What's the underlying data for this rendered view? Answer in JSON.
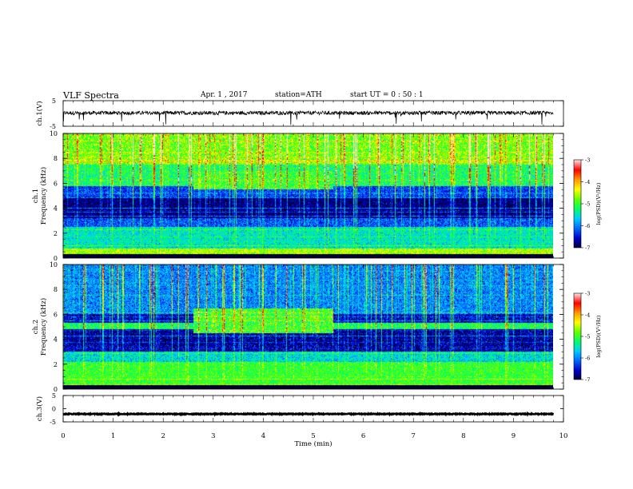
{
  "header": {
    "title": "VLF  Spectra",
    "date": "Apr. 1  , 2017",
    "station": "station=ATH",
    "start": "start  UT  =    0  : 50 : 1"
  },
  "chart_data": [
    {
      "type": "line",
      "name": "ch1-waveform",
      "ylabel": "ch.1(V)",
      "ylim": [
        -5,
        5
      ],
      "yticks": [
        "5",
        "-5"
      ],
      "xlim": [
        0,
        9.8
      ],
      "baseline_v": 0.2,
      "noise_amplitude_v": 1.5
    },
    {
      "type": "heatmap",
      "name": "ch1-spectrogram",
      "ylabel": "ch.1\nFrequency  (kHz)",
      "ylim": [
        0,
        10
      ],
      "yticks": [
        "0",
        "2",
        "4",
        "6",
        "8",
        "10"
      ],
      "xlim": [
        0,
        9.8
      ],
      "colorbar": {
        "label": "log(PSD)(V²/Hz)",
        "range": [
          -7,
          -3
        ],
        "ticks": [
          "-3",
          "-4",
          "-5",
          "-6",
          "-7"
        ]
      },
      "bands": [
        {
          "from": 0,
          "to": 0.3,
          "level": -7
        },
        {
          "from": 0.3,
          "to": 0.8,
          "level": -4.6
        },
        {
          "from": 0.8,
          "to": 2.5,
          "level": -5.5
        },
        {
          "from": 2.5,
          "to": 3.2,
          "level": -6.2
        },
        {
          "from": 3.2,
          "to": 4.8,
          "level": -6.8
        },
        {
          "from": 4.8,
          "to": 5.8,
          "level": -6.3
        },
        {
          "from": 5.8,
          "to": 7.5,
          "level": -5.2
        },
        {
          "from": 7.5,
          "to": 10,
          "level": -4.8
        }
      ],
      "enhanced_region": {
        "t": [
          2.6,
          5.4
        ],
        "f": [
          5.5,
          7.0
        ],
        "level": -5.0
      }
    },
    {
      "type": "heatmap",
      "name": "ch2-spectrogram",
      "ylabel": "ch.2\nFrequency  (kHz)",
      "ylim": [
        0,
        10
      ],
      "yticks": [
        "0",
        "2",
        "4",
        "6",
        "8",
        "10"
      ],
      "xlim": [
        0,
        9.8
      ],
      "colorbar": {
        "label": "log(PSD)(V²/Hz)",
        "range": [
          -7,
          -3
        ],
        "ticks": [
          "-3",
          "-4",
          "-5",
          "-6",
          "-7"
        ]
      },
      "bands": [
        {
          "from": 0,
          "to": 0.3,
          "level": -7
        },
        {
          "from": 0.3,
          "to": 2.2,
          "level": -5.0
        },
        {
          "from": 2.2,
          "to": 3.0,
          "level": -5.6
        },
        {
          "from": 3.0,
          "to": 4.8,
          "level": -6.7
        },
        {
          "from": 4.8,
          "to": 5.3,
          "level": -5.2
        },
        {
          "from": 5.3,
          "to": 6.0,
          "level": -6.6
        },
        {
          "from": 6.0,
          "to": 10,
          "level": -6.0
        }
      ],
      "enhanced_region": {
        "t": [
          2.6,
          5.4
        ],
        "f": [
          4.5,
          6.5
        ],
        "level": -5.0
      }
    },
    {
      "type": "line",
      "name": "ch3-waveform",
      "ylabel": "ch.3(V)",
      "ylim": [
        -5,
        5
      ],
      "yticks": [
        "5",
        "0",
        "-5"
      ],
      "xlim": [
        0,
        9.8
      ],
      "baseline_v": -2,
      "noise_amplitude_v": 0.3
    }
  ],
  "xaxis": {
    "label": "Time  (min)",
    "range": [
      0,
      10
    ],
    "ticks": [
      "0",
      "1",
      "2",
      "3",
      "4",
      "5",
      "6",
      "7",
      "8",
      "9",
      "10"
    ]
  },
  "colors": {
    "colormap": [
      "#000033",
      "#0000cc",
      "#0066ff",
      "#00ccff",
      "#00ff66",
      "#66ff00",
      "#ffff00",
      "#ff9900",
      "#ff0000",
      "#ffdddd"
    ],
    "line": "#000000"
  }
}
